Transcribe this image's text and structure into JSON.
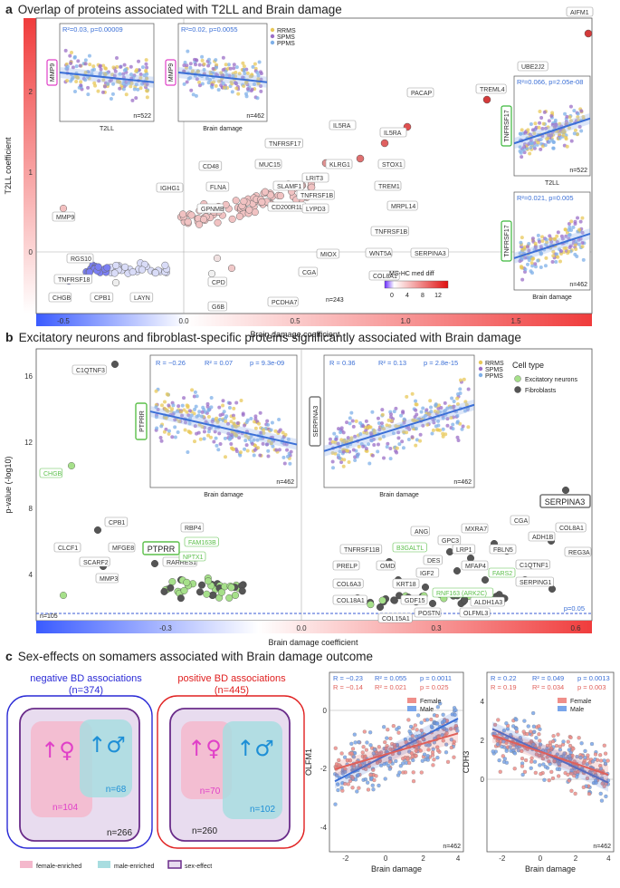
{
  "panel_a": {
    "letter": "a",
    "title": "Overlap of proteins associated with T2LL and Brain damage",
    "x_axis_label": "Brain damage coefficient",
    "y_axis_label": "T2LL coefficient",
    "x_ticks": [
      "-0.5",
      "0.0",
      "0.5",
      "1.0",
      "1.5"
    ],
    "y_ticks": [
      "0",
      "1",
      "2"
    ],
    "n_label": "n=243",
    "colorbar": {
      "title": "MS-HC med diff",
      "ticks": [
        "0",
        "4",
        "8",
        "12"
      ]
    },
    "legend": [
      "RRMS",
      "SPMS",
      "PPMS"
    ],
    "labels": [
      "AIFM1",
      "UBE2J2",
      "TREML4",
      "PACAP",
      "IL5RA",
      "IL5RA",
      "TNFRSF17",
      "KLRG1",
      "STOX1",
      "LRIT3",
      "MUC15",
      "CD48",
      "SLAMF1",
      "TREM1",
      "MRPL14",
      "IGHG1",
      "FLNA",
      "TNFRSF1B",
      "CD200R1L",
      "LYPD3",
      "TNFRSF1B",
      "GPNMB",
      "WNT5A",
      "MIOX",
      "SERPINA3",
      "CGA",
      "COL8A1",
      "CPD",
      "G6B",
      "PCDHA7",
      "MMP9",
      "RGS10",
      "TNFRSF18",
      "CHGB",
      "CPB1",
      "LAYN"
    ],
    "insets": [
      {
        "stat": "R²=0.03, p=0.00009",
        "ylabel": "MMP9",
        "xlabel": "T2LL",
        "n": "n=522"
      },
      {
        "stat": "R²=0.02, p=0.0055",
        "ylabel": "MMP9",
        "xlabel": "Brain damage",
        "n": "n=462"
      },
      {
        "stat": "R²=0.066, p=2.05e-08",
        "ylabel": "TNFRSF17",
        "xlabel": "T2LL",
        "n": "n=522"
      },
      {
        "stat": "R²=0.021, p=0.005",
        "ylabel": "TNFRSF17",
        "xlabel": "Brain damage",
        "n": "n=462"
      }
    ]
  },
  "panel_b": {
    "letter": "b",
    "title": "Excitatory neurons and fibroblast-specific proteins significantly associated with Brain damage",
    "x_axis_label": "Brain damage coefficient",
    "y_axis_label": "p-value (-log10)",
    "x_ticks": [
      "-0.3",
      "0.0",
      "0.3",
      "0.6"
    ],
    "y_ticks": [
      "4",
      "8",
      "12",
      "16"
    ],
    "n_label": "n=105",
    "p_label": "p=0.05",
    "legend_title": "Cell type",
    "legend": [
      "Excitatory neurons",
      "Fibroblasts"
    ],
    "group_legend": [
      "RRMS",
      "SPMS",
      "PPMS"
    ],
    "labels_dark": [
      "C1QTNF3",
      "CPB1",
      "CLCF1",
      "MFGE8",
      "SCARF2",
      "MMP3",
      "RARRES1",
      "RBP4",
      "ANG",
      "GPC3",
      "MXRA7",
      "CGA",
      "ADH1B",
      "COL8A1",
      "LRP1",
      "FBLN5",
      "TNFRSF11B",
      "DES",
      "MFAP4",
      "C1QTNF1",
      "REG3A",
      "PRELP",
      "OMD",
      "IGF2",
      "SERPING1",
      "COL6A3",
      "KRT18",
      "ALDH1A3",
      "COL18A1",
      "GDF15",
      "POSTN",
      "OLFML3",
      "COL15A1"
    ],
    "labels_green": [
      "CHGB",
      "FAM163B",
      "NPTX1",
      "B3GALTL",
      "FARS2",
      "RNF163 (ARK2C)"
    ],
    "highlight_left": "PTPRR",
    "highlight_right": "SERPINA3",
    "insets": [
      {
        "stat_r": "R = −0.26",
        "stat_r2": "R² = 0.07",
        "stat_p": "p = 9.3e-09",
        "ylabel": "PTPRR",
        "xlabel": "Brain damage",
        "n": "n=462"
      },
      {
        "stat_r": "R = 0.36",
        "stat_r2": "R² = 0.13",
        "stat_p": "p = 2.8e-15",
        "ylabel": "SERPINA3",
        "xlabel": "Brain damage",
        "n": "n=462"
      }
    ]
  },
  "panel_c": {
    "letter": "c",
    "title": "Sex-effects on somamers associated with Brain damage outcome",
    "neg_title": "negative BD associations",
    "neg_n": "(n=374)",
    "pos_title": "positive BD associations",
    "pos_n": "(n=445)",
    "neg_female": "n=104",
    "neg_male": "n=68",
    "neg_sex": "n=266",
    "pos_female": "n=70",
    "pos_male": "n=102",
    "pos_sex": "n=260",
    "female_symbol": "↑♀",
    "male_symbol": "↑♂",
    "legend": [
      "female-enriched",
      "male-enriched",
      "sex-effect"
    ],
    "scatter1": {
      "ylabel": "OLFM1",
      "xlabel": "Brain damage",
      "n": "n=462",
      "blue_r": "R = −0.23",
      "blue_r2": "R² = 0.055",
      "blue_p": "p = 0.0011",
      "red_r": "R = −0.14",
      "red_r2": "R² = 0.021",
      "red_p": "p = 0.025",
      "x_ticks": [
        "-2",
        "0",
        "2",
        "4"
      ],
      "y_ticks": [
        "0",
        "-2",
        "-4"
      ],
      "legend": [
        "Female",
        "Male"
      ]
    },
    "scatter2": {
      "ylabel": "CDH3",
      "xlabel": "Brain damage",
      "n": "n=462",
      "blue_r": "R = 0.22",
      "blue_r2": "R² = 0.049",
      "blue_p": "p = 0.0013",
      "red_r": "R = 0.19",
      "red_r2": "R² = 0.034",
      "red_p": "p = 0.003",
      "x_ticks": [
        "-2",
        "0",
        "2",
        "4"
      ],
      "y_ticks": [
        "0",
        "2",
        "4"
      ],
      "legend": [
        "Female",
        "Male"
      ]
    }
  },
  "colors": {
    "blue": "#3b6fd6",
    "red": "#e0605a",
    "green": "#5bbf4a",
    "magenta": "#e040c8",
    "purple": "#6a2c8a",
    "female_fill": "#f2aac0",
    "male_fill": "#a8dde0"
  }
}
